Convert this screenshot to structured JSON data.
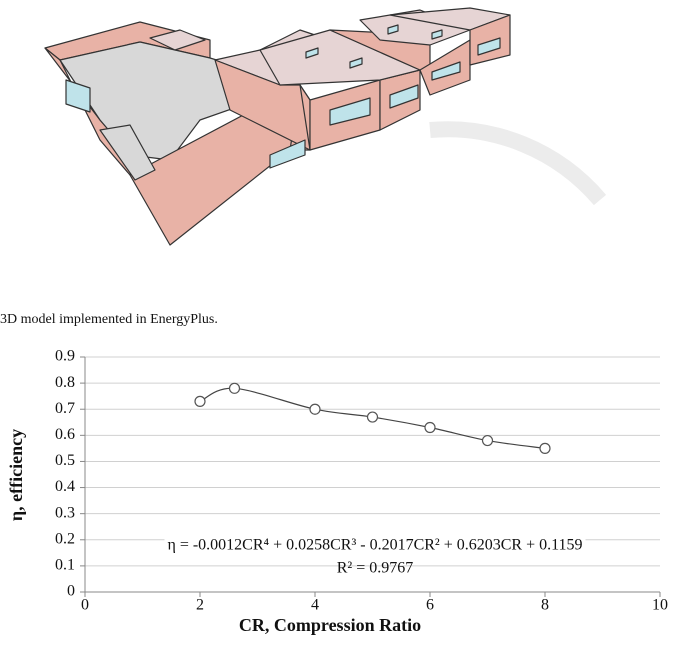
{
  "figure": {
    "caption": "3D model implemented in EnergyPlus."
  },
  "chart_data": {
    "type": "scatter",
    "x_label": "CR, Compression Ratio",
    "y_label": "η, efficiency",
    "equation": "η = -0.0012CR⁴ + 0.0258CR³ - 0.2017CR² + 0.6203CR + 0.1159",
    "r_squared": "R² = 0.9767",
    "x": [
      2,
      2.6,
      4,
      5,
      6,
      7,
      8
    ],
    "values": [
      0.73,
      0.78,
      0.7,
      0.67,
      0.63,
      0.58,
      0.55
    ],
    "color": "#555555",
    "xlim": [
      0,
      10
    ],
    "xticks": [
      0,
      2,
      4,
      6,
      8,
      10
    ],
    "ylim": [
      0,
      0.9
    ],
    "yticks": [
      0,
      0.1,
      0.2,
      0.3,
      0.4,
      0.5,
      0.6,
      0.7,
      0.8,
      0.9
    ],
    "grid": true,
    "trendline": true
  }
}
